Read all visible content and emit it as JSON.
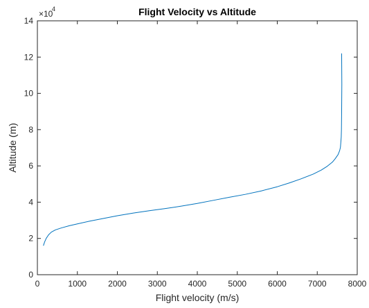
{
  "chart_data": {
    "type": "line",
    "title": "Flight Velocity vs Altitude",
    "xlabel": "Flight velocity (m/s)",
    "ylabel": "Altitude (m)",
    "xlim": [
      0,
      8000
    ],
    "ylim": [
      0,
      140000
    ],
    "xticks": [
      0,
      1000,
      2000,
      3000,
      4000,
      5000,
      6000,
      7000,
      8000
    ],
    "xtick_labels": [
      "0",
      "1000",
      "2000",
      "3000",
      "4000",
      "5000",
      "6000",
      "7000",
      "8000"
    ],
    "yticks": [
      0,
      20000,
      40000,
      60000,
      80000,
      100000,
      120000,
      140000
    ],
    "ytick_labels": [
      "0",
      "2",
      "4",
      "6",
      "8",
      "10",
      "12",
      "14"
    ],
    "y_exponent_base": "×10",
    "y_exponent_power": "4",
    "grid": false,
    "legend": "none",
    "series": [
      {
        "color": "#0072BD",
        "x": [
          150,
          180,
          220,
          280,
          350,
          450,
          600,
          800,
          1000,
          1300,
          1600,
          2000,
          2400,
          2800,
          3200,
          3600,
          4000,
          4400,
          4800,
          5200,
          5600,
          6000,
          6300,
          6600,
          6900,
          7100,
          7250,
          7380,
          7450,
          7520,
          7560,
          7580,
          7590,
          7600,
          7605,
          7610,
          7615,
          7610
        ],
        "y": [
          16000,
          18000,
          20000,
          22000,
          23500,
          24700,
          25800,
          27000,
          28000,
          29500,
          30800,
          32500,
          34000,
          35300,
          36500,
          37800,
          39300,
          41000,
          42700,
          44300,
          46200,
          48500,
          50600,
          52900,
          55500,
          57700,
          59800,
          62100,
          64000,
          66200,
          68400,
          70300,
          73000,
          76000,
          80000,
          90000,
          105000,
          122000
        ]
      }
    ]
  }
}
